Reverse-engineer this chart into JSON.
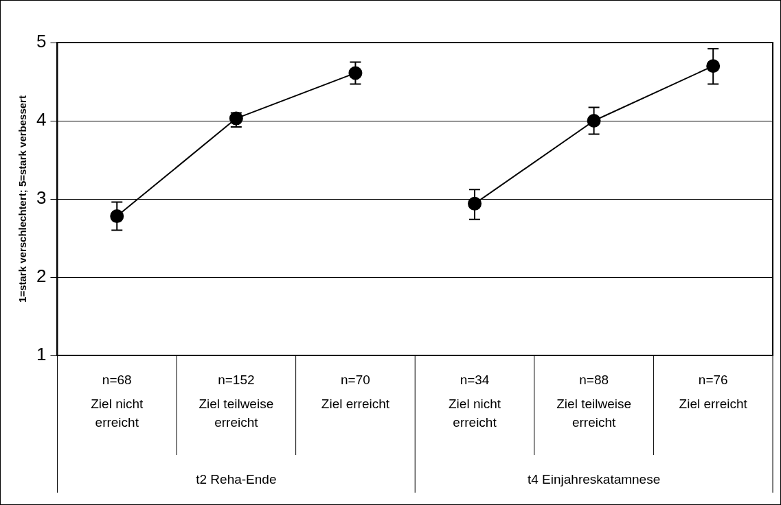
{
  "chart_data": {
    "type": "line",
    "ylabel": "1=stark verschlechtert; 5=stark verbessert",
    "categories": [
      "Ziel nicht erreicht",
      "Ziel teilweise erreicht",
      "Ziel erreicht",
      "Ziel nicht erreicht",
      "Ziel teilweise erreicht",
      "Ziel erreicht"
    ],
    "series": [
      {
        "color": "#000000",
        "values": [
          2.78,
          4.03,
          4.61,
          null,
          null,
          null
        ],
        "errors": [
          [
            2.6,
            2.96
          ],
          [
            3.92,
            4.1
          ],
          [
            4.47,
            4.75
          ],
          null,
          null,
          null
        ]
      },
      {
        "color": "#000000",
        "values": [
          null,
          null,
          null,
          2.94,
          4.0,
          4.7
        ],
        "errors": [
          null,
          null,
          null,
          [
            2.74,
            3.12
          ],
          [
            3.83,
            4.17
          ],
          [
            4.47,
            4.92
          ]
        ]
      }
    ],
    "annotations": [
      "n=68",
      "n=152",
      "n=70",
      "n=34",
      "n=88",
      "n=76",
      "t2 Reha-Ende",
      "t4 Einjahreskatamnese"
    ],
    "ylim": [
      1,
      5
    ],
    "yticks": [
      1,
      2,
      3,
      4,
      5
    ],
    "grid": "y",
    "legend": false,
    "marker": "circle",
    "line_style": "solid"
  }
}
